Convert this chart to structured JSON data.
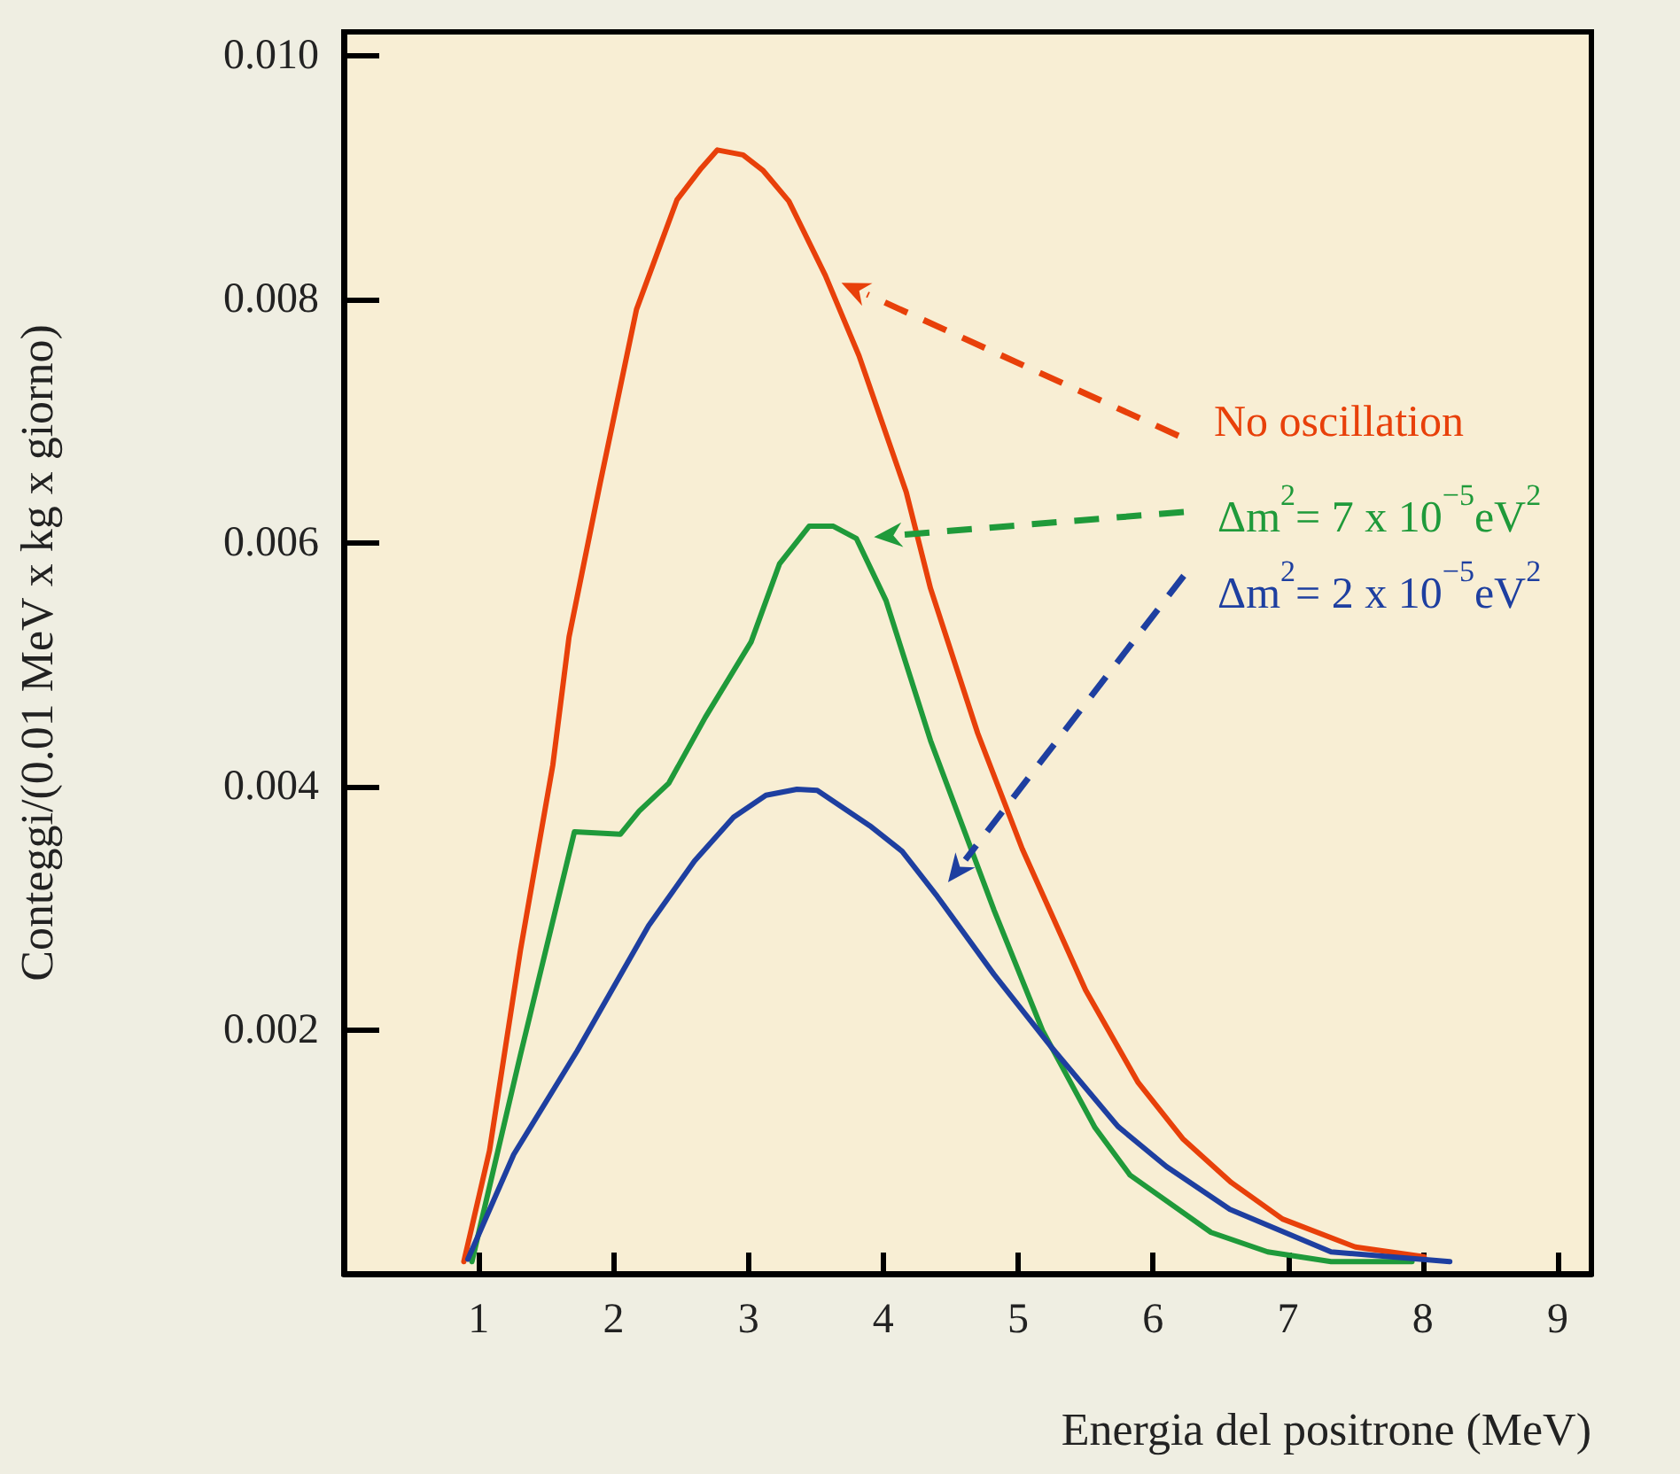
{
  "chart_data": {
    "type": "line",
    "xlabel": "Energia del positrone (MeV)",
    "ylabel": "Conteggi/(0.01 MeV x kg x giorno)",
    "xlim": [
      0,
      9.25
    ],
    "xticks": [
      1,
      2,
      3,
      4,
      5,
      6,
      7,
      8,
      9
    ],
    "ylim": [
      0,
      0.0102
    ],
    "yticks": [
      0.002,
      0.004,
      0.006,
      {
        "value": 0.01,
        "label": "0.010"
      },
      0.008
    ],
    "grid": false,
    "legend": false,
    "marker": "none",
    "line_style": "solid",
    "series": [
      {
        "name": "No oscillation",
        "color": "#e8400a",
        "x": [
          0.89,
          1.08,
          1.31,
          1.55,
          1.67,
          1.9,
          2.17,
          2.47,
          2.65,
          2.77,
          2.96,
          3.11,
          3.3,
          3.57,
          3.82,
          4.17,
          4.35,
          4.7,
          5.03,
          5.5,
          5.89,
          6.22,
          6.58,
          6.96,
          7.5,
          8.01
        ],
        "values": [
          0.0001,
          0.00101,
          0.00266,
          0.00418,
          0.00523,
          0.00649,
          0.00792,
          0.00882,
          0.00908,
          0.00923,
          0.00919,
          0.00906,
          0.00881,
          0.0082,
          0.00754,
          0.00642,
          0.00563,
          0.00444,
          0.00349,
          0.00233,
          0.00157,
          0.00111,
          0.00075,
          0.00045,
          0.00022,
          0.00014
        ]
      },
      {
        "name": "Δm$^{2}$= 7 x 10$^{−5}$eV$^{2}$",
        "color": "#1f9a3a",
        "x": [
          0.95,
          1.31,
          1.71,
          2.05,
          2.19,
          2.41,
          2.68,
          3.02,
          3.23,
          3.45,
          3.63,
          3.8,
          4.02,
          4.35,
          4.82,
          5.18,
          5.57,
          5.83,
          6.43,
          6.85,
          7.32,
          7.92
        ],
        "values": [
          0.0001,
          0.0018,
          0.00363,
          0.00361,
          0.0038,
          0.00403,
          0.00457,
          0.00519,
          0.00583,
          0.00614,
          0.00614,
          0.00604,
          0.00553,
          0.00438,
          0.00299,
          0.002,
          0.0012,
          0.00081,
          0.00034,
          0.00018,
          0.0001,
          0.0001
        ]
      },
      {
        "name": "Δm$^{2}$= 2 x 10$^{−5}$eV$^{2}$",
        "color": "#1e3fa0",
        "x": [
          0.92,
          1.26,
          1.73,
          2.26,
          2.6,
          2.89,
          3.13,
          3.36,
          3.51,
          3.9,
          4.14,
          4.4,
          4.82,
          5.24,
          5.74,
          6.1,
          6.57,
          7.32,
          8.2
        ],
        "values": [
          0.00012,
          0.00098,
          0.00183,
          0.00286,
          0.00339,
          0.00375,
          0.00393,
          0.00398,
          0.00397,
          0.00368,
          0.00347,
          0.0031,
          0.00246,
          0.00187,
          0.00121,
          0.00088,
          0.00053,
          0.00018,
          0.0001
        ]
      }
    ]
  }
}
